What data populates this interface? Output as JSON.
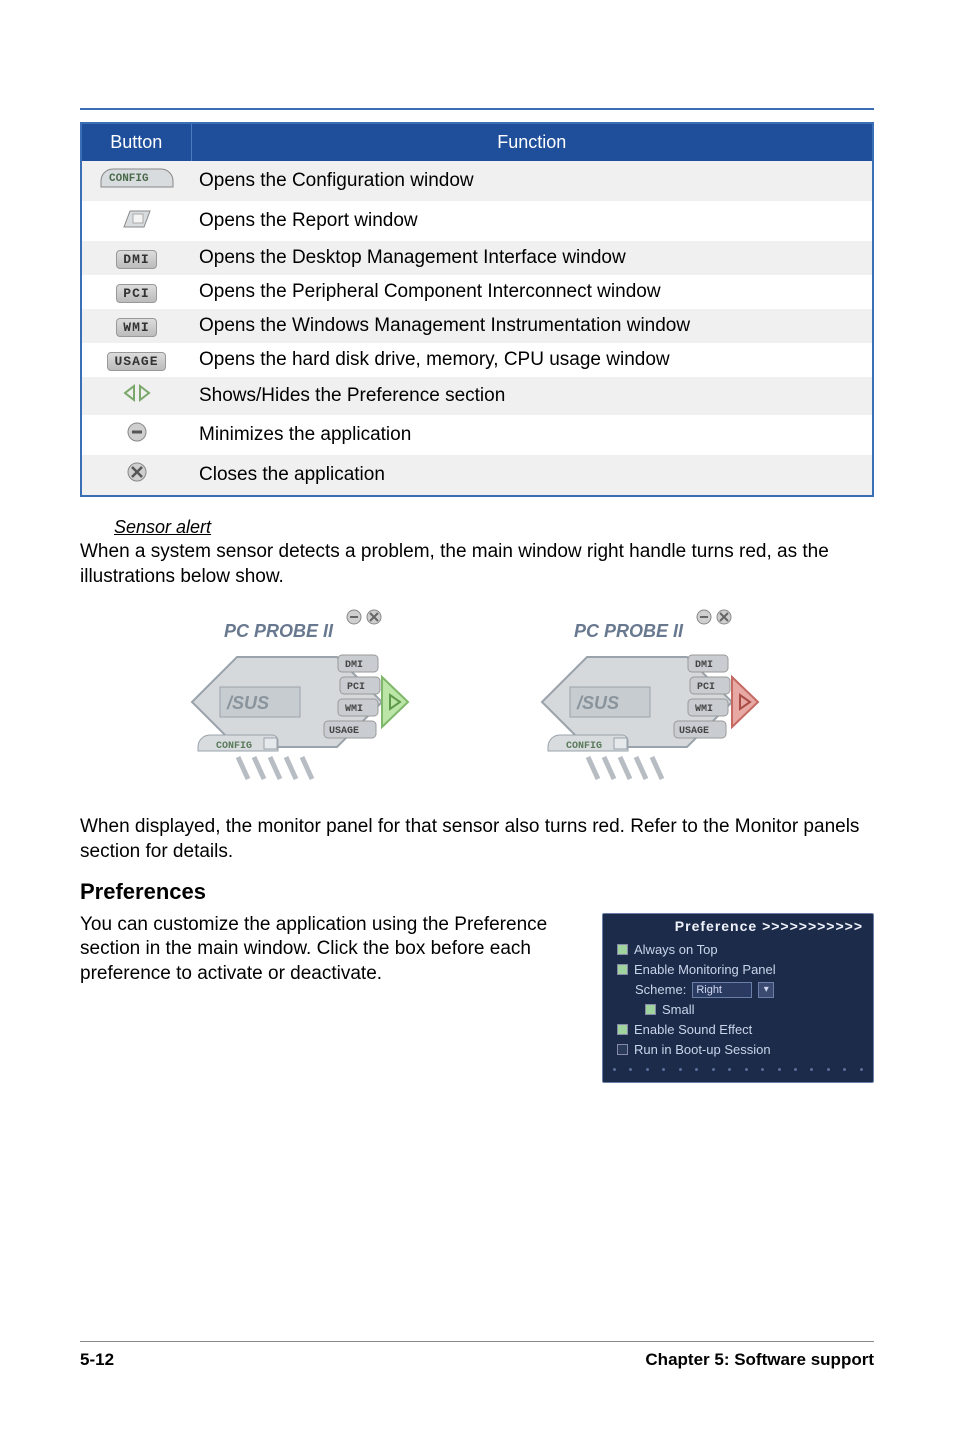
{
  "colors": {
    "accent_blue": "#3b6fb5",
    "header_blue": "#1f4e9b",
    "band_gray": "#f0f0f0",
    "panel_bg": "#1d2b4a",
    "panel_text": "#c8d4ea"
  },
  "table": {
    "headers": {
      "button": "Button",
      "function": "Function"
    },
    "rows": [
      {
        "icon": "config-tab",
        "label": "CONFIG",
        "func": "Opens the Configuration window",
        "band": true
      },
      {
        "icon": "report-folder",
        "label": "",
        "func": "Opens the Report window",
        "band": false
      },
      {
        "icon": "pill",
        "label": "DMI",
        "func": "Opens the Desktop Management Interface window",
        "band": true
      },
      {
        "icon": "pill",
        "label": "PCI",
        "func": "Opens the Peripheral Component Interconnect window",
        "band": false
      },
      {
        "icon": "pill",
        "label": "WMI",
        "func": "Opens the Windows Management Instrumentation window",
        "band": true
      },
      {
        "icon": "pill",
        "label": "USAGE",
        "func": "Opens the hard disk drive, memory, CPU usage window",
        "band": false
      },
      {
        "icon": "arrows",
        "label": "",
        "func": "Shows/Hides the Preference section",
        "band": true
      },
      {
        "icon": "minimize",
        "label": "",
        "func": "Minimizes the application",
        "band": false
      },
      {
        "icon": "close",
        "label": "",
        "func": "Closes the application",
        "band": true
      }
    ]
  },
  "sensor": {
    "title": "Sensor alert",
    "para1": "When a system sensor detects a problem, the main window right handle turns red, as the illustrations below show.",
    "para2": "When displayed, the monitor panel for that sensor also turns red. Refer to the Monitor panels section for details.",
    "probe_label": "PC PROBE II",
    "buttons": {
      "dmi": "DMI",
      "pci": "PCI",
      "wmi": "WMI",
      "usage": "USAGE",
      "config": "CONFIG"
    }
  },
  "preferences": {
    "heading": "Preferences",
    "para": "You can customize the application using the Preference section in the main window. Click the box before each preference to activate or deactivate.",
    "panel_title": "Preference >>>>>>>>>>>",
    "items": {
      "always_on_top": "Always on Top",
      "enable_monitoring": "Enable Monitoring Panel",
      "scheme_label": "Scheme:",
      "scheme_value": "Right",
      "small": "Small",
      "enable_sound": "Enable Sound Effect",
      "run_boot": "Run in Boot-up Session"
    }
  },
  "footer": {
    "left": "5-12",
    "right": "Chapter 5: Software support"
  }
}
